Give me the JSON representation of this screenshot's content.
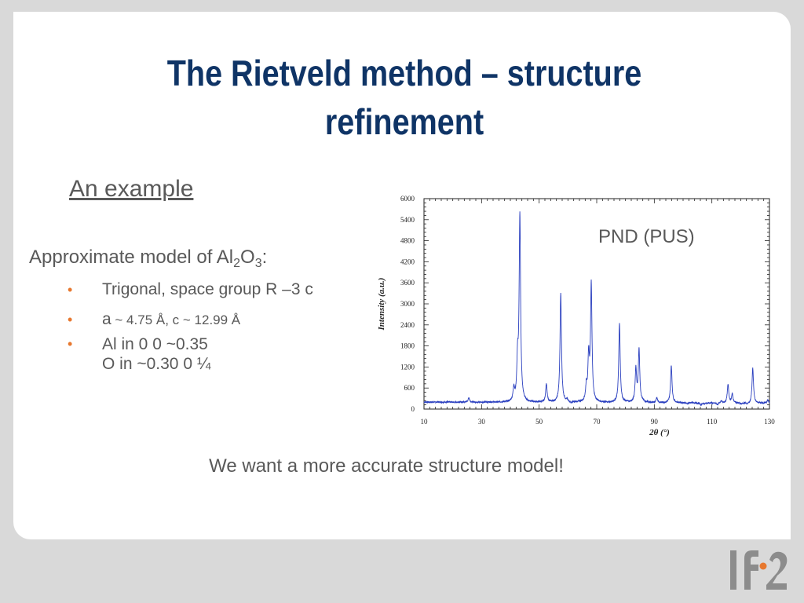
{
  "slide": {
    "title_line1": "The Rietveld method – structure",
    "title_line2": "refinement",
    "subtitle": "An example",
    "model_heading_prefix": "Approximate model of Al",
    "model_heading_sub1": "2",
    "model_heading_mid": "O",
    "model_heading_sub2": "3",
    "model_heading_suffix": ":",
    "bullets": [
      {
        "text": "Trigonal, space group R –3 c"
      },
      {
        "text_main": "a",
        "text_small": " ~ 4.75 Å, c ~ 12.99 Å"
      },
      {
        "line1": "Al in 0 0 ~0.35",
        "line2": "O in ~0.30 0 ¼"
      }
    ],
    "bullet_symbol": "•",
    "chart_annotation": "PND (PUS)",
    "conclusion": "We want a more accurate structure model!"
  },
  "colors": {
    "title": "#0f3466",
    "body_text": "#595959",
    "bullet": "#e7782f",
    "pattern_line": "#2a3fbf",
    "logo_gray": "#8c8c8c",
    "logo_orange": "#e7782f"
  },
  "chart_data": {
    "type": "line",
    "title": "",
    "xlabel": "2θ (°)",
    "ylabel": "Intensity (a.u.)",
    "xlim": [
      10,
      130
    ],
    "ylim": [
      0,
      6000
    ],
    "x_ticks": [
      10,
      30,
      50,
      70,
      90,
      110,
      130
    ],
    "y_ticks": [
      0,
      600,
      1200,
      1800,
      2400,
      3000,
      3600,
      4200,
      4800,
      5400,
      6000
    ],
    "background": 200,
    "width": 0.3,
    "series": [
      {
        "peaks": [
          {
            "x": 25.6,
            "y": 330
          },
          {
            "x": 32.9,
            "y": 210
          },
          {
            "x": 41.2,
            "y": 560
          },
          {
            "x": 42.5,
            "y": 1280
          },
          {
            "x": 43.3,
            "y": 5500
          },
          {
            "x": 52.5,
            "y": 720
          },
          {
            "x": 57.5,
            "y": 3300
          },
          {
            "x": 59.7,
            "y": 260
          },
          {
            "x": 61.1,
            "y": 160
          },
          {
            "x": 66.4,
            "y": 620
          },
          {
            "x": 67.2,
            "y": 1450
          },
          {
            "x": 68.1,
            "y": 3550
          },
          {
            "x": 70.4,
            "y": 210
          },
          {
            "x": 77.9,
            "y": 2450
          },
          {
            "x": 80.8,
            "y": 210
          },
          {
            "x": 83.6,
            "y": 1150
          },
          {
            "x": 84.7,
            "y": 1700
          },
          {
            "x": 86.1,
            "y": 230
          },
          {
            "x": 87.7,
            "y": 210
          },
          {
            "x": 90.9,
            "y": 340
          },
          {
            "x": 95.9,
            "y": 1270
          },
          {
            "x": 99.1,
            "y": 210
          },
          {
            "x": 101.5,
            "y": 180
          },
          {
            "x": 103.2,
            "y": 210
          },
          {
            "x": 106.2,
            "y": 140
          },
          {
            "x": 107.4,
            "y": 180
          },
          {
            "x": 111.9,
            "y": 150
          },
          {
            "x": 113.3,
            "y": 260
          },
          {
            "x": 115.6,
            "y": 730
          },
          {
            "x": 117.1,
            "y": 460
          },
          {
            "x": 120.2,
            "y": 170
          },
          {
            "x": 122.2,
            "y": 150
          },
          {
            "x": 123.1,
            "y": 180
          },
          {
            "x": 124.2,
            "y": 1200
          },
          {
            "x": 127.3,
            "y": 210
          },
          {
            "x": 129.4,
            "y": 300
          }
        ]
      }
    ]
  }
}
